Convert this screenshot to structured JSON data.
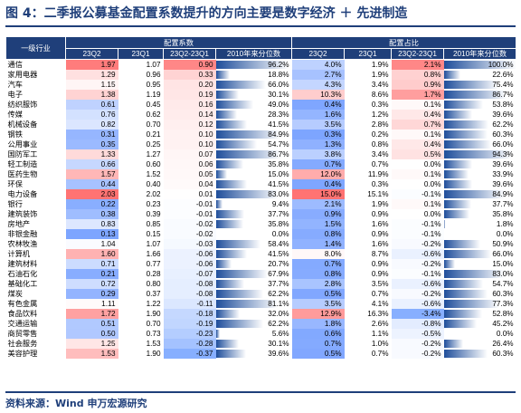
{
  "title": "图 4：二季报公募基金配置系数提升的方向主要是数字经济 ＋ 先进制造",
  "source": "资料来源：Wind 申万宏源研究",
  "header": {
    "industry": "一级行业",
    "group1": "配置系数",
    "group2": "配置占比",
    "cols": [
      "23Q2",
      "23Q1",
      "23Q2-23Q1",
      "2010年来分位数",
      "23Q2",
      "23Q1",
      "23Q2-23Q1",
      "2010年来分位数"
    ]
  },
  "rows": [
    [
      "通信",
      "1.97",
      "1.07",
      "0.90",
      "96.2%",
      "4.0%",
      "1.9%",
      "2.1%",
      "100.0%"
    ],
    [
      "家用电器",
      "1.29",
      "0.96",
      "0.33",
      "18.8%",
      "2.7%",
      "1.9%",
      "0.8%",
      "22.6%"
    ],
    [
      "汽车",
      "1.15",
      "0.95",
      "0.20",
      "66.0%",
      "4.3%",
      "3.4%",
      "0.9%",
      "75.4%"
    ],
    [
      "电子",
      "1.38",
      "1.19",
      "0.19",
      "30.1%",
      "10.3%",
      "8.6%",
      "1.7%",
      "86.7%"
    ],
    [
      "纺织服饰",
      "0.61",
      "0.45",
      "0.16",
      "49.0%",
      "0.4%",
      "0.3%",
      "0.1%",
      "53.8%"
    ],
    [
      "传媒",
      "0.76",
      "0.62",
      "0.14",
      "28.3%",
      "1.6%",
      "1.2%",
      "0.4%",
      "39.6%"
    ],
    [
      "机械设备",
      "0.82",
      "0.70",
      "0.12",
      "41.5%",
      "3.5%",
      "2.8%",
      "0.7%",
      "62.2%"
    ],
    [
      "钢铁",
      "0.31",
      "0.21",
      "0.10",
      "84.9%",
      "0.3%",
      "0.2%",
      "0.1%",
      "60.3%"
    ],
    [
      "公用事业",
      "0.35",
      "0.25",
      "0.10",
      "54.7%",
      "1.3%",
      "0.8%",
      "0.4%",
      "66.0%"
    ],
    [
      "国防军工",
      "1.33",
      "1.27",
      "0.07",
      "86.7%",
      "3.8%",
      "3.4%",
      "0.5%",
      "94.3%"
    ],
    [
      "轻工制造",
      "0.66",
      "0.60",
      "0.06",
      "35.8%",
      "0.7%",
      "0.7%",
      "0.0%",
      "39.6%"
    ],
    [
      "医药生物",
      "1.57",
      "1.52",
      "0.05",
      "15.0%",
      "12.0%",
      "11.9%",
      "0.1%",
      "33.9%"
    ],
    [
      "环保",
      "0.44",
      "0.40",
      "0.04",
      "41.5%",
      "0.4%",
      "0.3%",
      "0.0%",
      "39.6%"
    ],
    [
      "电力设备",
      "2.03",
      "2.02",
      "0.01",
      "83.0%",
      "15.0%",
      "15.1%",
      "-0.1%",
      "84.9%"
    ],
    [
      "银行",
      "0.22",
      "0.23",
      "-0.01",
      "9.4%",
      "2.1%",
      "1.9%",
      "0.1%",
      "37.7%"
    ],
    [
      "建筑装饰",
      "0.38",
      "0.39",
      "-0.01",
      "37.7%",
      "0.9%",
      "0.9%",
      "0.0%",
      "35.8%"
    ],
    [
      "房地产",
      "0.83",
      "0.85",
      "-0.02",
      "35.8%",
      "1.5%",
      "1.6%",
      "-0.1%",
      "1.8%"
    ],
    [
      "非银金融",
      "0.13",
      "0.15",
      "-0.02",
      "0.0%",
      "0.8%",
      "0.9%",
      "-0.1%",
      "0.0%"
    ],
    [
      "农林牧渔",
      "1.04",
      "1.07",
      "-0.03",
      "58.4%",
      "1.4%",
      "1.6%",
      "-0.2%",
      "50.9%"
    ],
    [
      "计算机",
      "1.60",
      "1.66",
      "-0.06",
      "41.5%",
      "8.0%",
      "8.7%",
      "-0.6%",
      "66.0%"
    ],
    [
      "建筑材料",
      "0.71",
      "0.77",
      "-0.06",
      "20.7%",
      "0.7%",
      "0.9%",
      "-0.2%",
      "15.0%"
    ],
    [
      "石油石化",
      "0.21",
      "0.28",
      "-0.07",
      "67.9%",
      "0.8%",
      "0.9%",
      "-0.1%",
      "83.0%"
    ],
    [
      "基础化工",
      "0.72",
      "0.80",
      "-0.08",
      "37.7%",
      "2.8%",
      "3.5%",
      "-0.6%",
      "54.7%"
    ],
    [
      "煤炭",
      "0.29",
      "0.37",
      "-0.08",
      "62.2%",
      "0.5%",
      "0.7%",
      "-0.2%",
      "60.3%"
    ],
    [
      "有色金属",
      "1.11",
      "1.22",
      "-0.11",
      "81.1%",
      "3.5%",
      "4.1%",
      "-0.6%",
      "77.3%"
    ],
    [
      "食品饮料",
      "1.72",
      "1.90",
      "-0.18",
      "32.0%",
      "12.9%",
      "16.3%",
      "-3.4%",
      "52.8%"
    ],
    [
      "交通运输",
      "0.51",
      "0.70",
      "-0.19",
      "62.2%",
      "1.8%",
      "2.6%",
      "-0.8%",
      "45.2%"
    ],
    [
      "商贸零售",
      "0.50",
      "0.73",
      "-0.23",
      "5.6%",
      "0.6%",
      "1.1%",
      "-0.5%",
      "0.0%"
    ],
    [
      "社会服务",
      "1.25",
      "1.53",
      "-0.28",
      "30.1%",
      "0.7%",
      "1.0%",
      "-0.2%",
      "26.4%"
    ],
    [
      "美容护理",
      "1.53",
      "1.90",
      "-0.37",
      "39.6%",
      "0.5%",
      "0.7%",
      "-0.2%",
      "60.3%"
    ]
  ]
}
